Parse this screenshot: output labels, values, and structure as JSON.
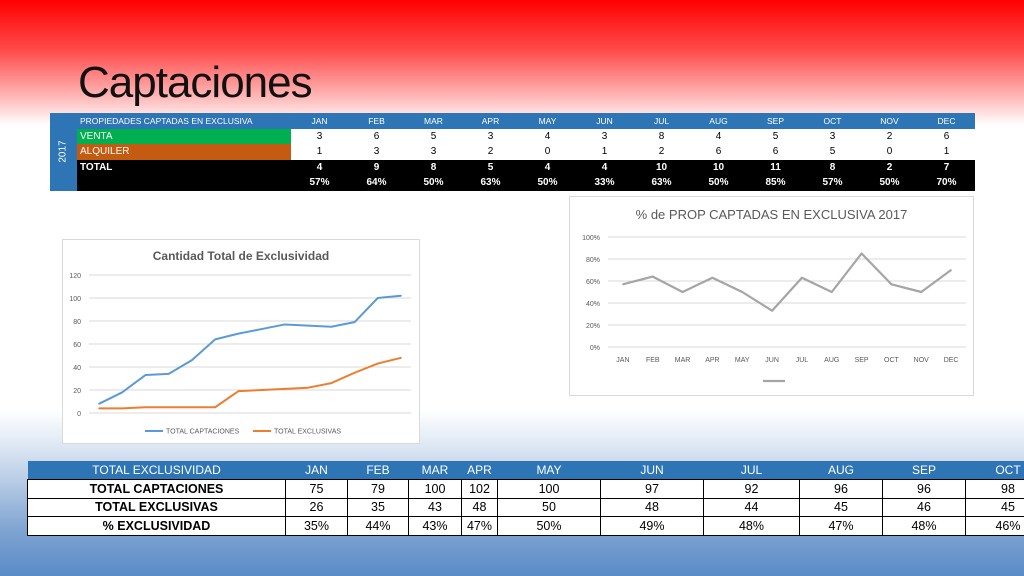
{
  "slide": {
    "title": "Captaciones"
  },
  "top_table": {
    "year": "2017",
    "header_label": "PROPIEDADES CAPTADAS EN EXCLUSIVA",
    "months": [
      "JAN",
      "FEB",
      "MAR",
      "APR",
      "MAY",
      "JUN",
      "JUL",
      "AUG",
      "SEP",
      "OCT",
      "NOV",
      "DEC"
    ],
    "rows": [
      {
        "label": "VENTA",
        "values": [
          "3",
          "6",
          "5",
          "3",
          "4",
          "3",
          "8",
          "4",
          "5",
          "3",
          "2",
          "6"
        ],
        "color": "#00b050"
      },
      {
        "label": "ALQUILER",
        "values": [
          "1",
          "3",
          "3",
          "2",
          "0",
          "1",
          "2",
          "6",
          "6",
          "5",
          "0",
          "1"
        ],
        "color": "#c55a11"
      },
      {
        "label": "TOTAL",
        "values": [
          "4",
          "9",
          "8",
          "5",
          "4",
          "4",
          "10",
          "10",
          "11",
          "8",
          "2",
          "7"
        ],
        "color": "#000000"
      },
      {
        "label": "",
        "values": [
          "57%",
          "64%",
          "50%",
          "63%",
          "50%",
          "33%",
          "63%",
          "50%",
          "85%",
          "57%",
          "50%",
          "70%"
        ],
        "color": "#000000"
      }
    ]
  },
  "bottom_table": {
    "header": [
      "TOTAL EXCLUSIVIDAD",
      "JAN",
      "FEB",
      "MAR",
      "APR",
      "MAY",
      "JUN",
      "JUL",
      "AUG",
      "SEP",
      "OCT"
    ],
    "rows": [
      {
        "label": "TOTAL CAPTACIONES",
        "values": [
          "75",
          "79",
          "100",
          "102",
          "100",
          "97",
          "92",
          "96",
          "96",
          "98"
        ]
      },
      {
        "label": "TOTAL EXCLUSIVAS",
        "values": [
          "26",
          "35",
          "43",
          "48",
          "50",
          "48",
          "44",
          "45",
          "46",
          "45"
        ]
      },
      {
        "label": "% EXCLUSIVIDAD",
        "values": [
          "35%",
          "44%",
          "43%",
          "47%",
          "50%",
          "49%",
          "48%",
          "47%",
          "48%",
          "46%"
        ]
      }
    ]
  },
  "chart_data": [
    {
      "type": "line",
      "title": "Cantidad Total de Exclusividad",
      "ylim": [
        0,
        120
      ],
      "yticks": [
        0,
        20,
        40,
        60,
        80,
        100,
        120
      ],
      "grid": true,
      "legend_position": "bottom",
      "x": [
        1,
        2,
        3,
        4,
        5,
        6,
        7,
        8,
        9,
        10,
        11,
        12,
        13,
        14
      ],
      "series": [
        {
          "name": "TOTAL CAPTACIONES",
          "color": "#5b9bd5",
          "values": [
            8,
            18,
            33,
            34,
            46,
            64,
            69,
            73,
            77,
            76,
            75,
            79,
            100,
            102
          ]
        },
        {
          "name": "TOTAL EXCLUSIVAS",
          "color": "#ed7d31",
          "values": [
            4,
            4,
            5,
            5,
            5,
            5,
            19,
            20,
            21,
            22,
            26,
            35,
            43,
            48
          ]
        }
      ]
    },
    {
      "type": "line",
      "title": "% de PROP CAPTADAS EN EXCLUSIVA 2017",
      "categories": [
        "JAN",
        "FEB",
        "MAR",
        "APR",
        "MAY",
        "JUN",
        "JUL",
        "AUG",
        "SEP",
        "OCT",
        "NOV",
        "DEC"
      ],
      "ylim": [
        0,
        1
      ],
      "yticks": [
        "0%",
        "20%",
        "40%",
        "60%",
        "80%",
        "100%"
      ],
      "grid": true,
      "legend_position": "bottom",
      "series": [
        {
          "color": "#a5a5a5",
          "values": [
            0.57,
            0.64,
            0.5,
            0.63,
            0.5,
            0.33,
            0.63,
            0.5,
            0.85,
            0.57,
            0.5,
            0.7
          ]
        }
      ]
    }
  ]
}
